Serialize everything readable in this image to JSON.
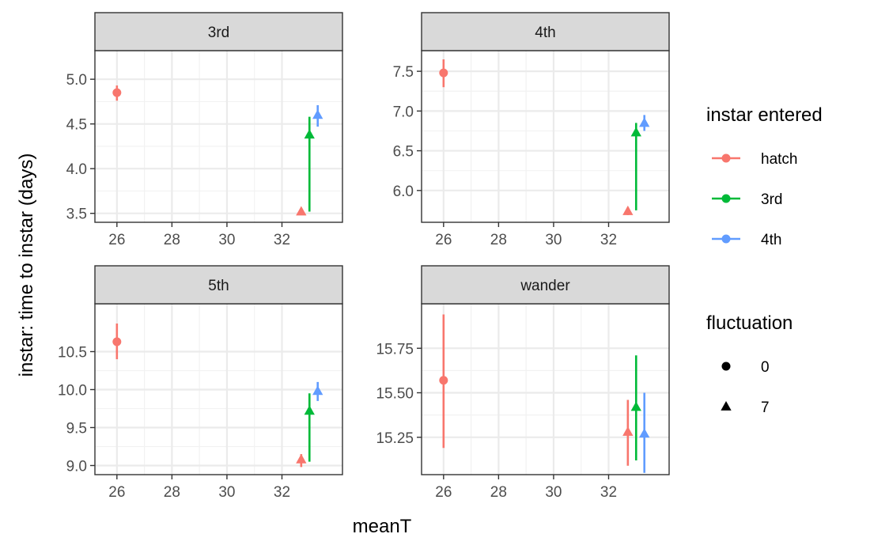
{
  "chart_data": {
    "type": "scatter",
    "xlabel": "meanT",
    "ylabel": "instar: time to instar (days)",
    "x_ticks": [
      26,
      28,
      30,
      32
    ],
    "xlim": [
      25.2,
      34.2
    ],
    "legend": {
      "placement": "right",
      "color_title": "instar entered",
      "color_entries": [
        {
          "label": "hatch",
          "color": "#F8766D"
        },
        {
          "label": "3rd",
          "color": "#00BA38"
        },
        {
          "label": "4th",
          "color": "#619CFF"
        }
      ],
      "shape_title": "fluctuation",
      "shape_entries": [
        {
          "label": "0",
          "shape": "circle"
        },
        {
          "label": "7",
          "shape": "triangle"
        }
      ]
    },
    "panels": [
      {
        "strip": "3rd",
        "ylim": [
          3.4,
          5.32
        ],
        "y_ticks": [
          3.5,
          4.0,
          4.5,
          5.0
        ],
        "y_tick_labels": [
          "3.5",
          "4.0",
          "4.5",
          "5.0"
        ],
        "points": [
          {
            "series": "hatch",
            "fluctuation": "0",
            "x": 26.0,
            "y": 4.85,
            "lo": 4.76,
            "hi": 4.93
          },
          {
            "series": "hatch",
            "fluctuation": "7",
            "x": 32.7,
            "y": 3.52,
            "lo": 3.48,
            "hi": 3.56
          },
          {
            "series": "3rd",
            "fluctuation": "7",
            "x": 33.0,
            "y": 4.38,
            "lo": 3.52,
            "hi": 4.58
          },
          {
            "series": "4th",
            "fluctuation": "7",
            "x": 33.3,
            "y": 4.6,
            "lo": 4.47,
            "hi": 4.71
          }
        ]
      },
      {
        "strip": "4th",
        "ylim": [
          5.6,
          7.76
        ],
        "y_ticks": [
          6.0,
          6.5,
          7.0,
          7.5
        ],
        "y_tick_labels": [
          "6.0",
          "6.5",
          "7.0",
          "7.5"
        ],
        "points": [
          {
            "series": "hatch",
            "fluctuation": "0",
            "x": 26.0,
            "y": 7.48,
            "lo": 7.3,
            "hi": 7.65
          },
          {
            "series": "hatch",
            "fluctuation": "7",
            "x": 32.7,
            "y": 5.74,
            "lo": 5.69,
            "hi": 5.79
          },
          {
            "series": "3rd",
            "fluctuation": "7",
            "x": 33.0,
            "y": 6.73,
            "lo": 5.75,
            "hi": 6.85
          },
          {
            "series": "4th",
            "fluctuation": "7",
            "x": 33.3,
            "y": 6.85,
            "lo": 6.75,
            "hi": 6.95
          }
        ]
      },
      {
        "strip": "5th",
        "ylim": [
          8.88,
          11.13
        ],
        "y_ticks": [
          9.0,
          9.5,
          10.0,
          10.5
        ],
        "y_tick_labels": [
          "9.0",
          "9.5",
          "10.0",
          "10.5"
        ],
        "points": [
          {
            "series": "hatch",
            "fluctuation": "0",
            "x": 26.0,
            "y": 10.63,
            "lo": 10.4,
            "hi": 10.87
          },
          {
            "series": "hatch",
            "fluctuation": "7",
            "x": 32.7,
            "y": 9.08,
            "lo": 8.98,
            "hi": 9.15
          },
          {
            "series": "3rd",
            "fluctuation": "7",
            "x": 33.0,
            "y": 9.72,
            "lo": 9.05,
            "hi": 9.95
          },
          {
            "series": "4th",
            "fluctuation": "7",
            "x": 33.3,
            "y": 9.98,
            "lo": 9.85,
            "hi": 10.1
          }
        ]
      },
      {
        "strip": "wander",
        "ylim": [
          15.04,
          16.0
        ],
        "y_ticks": [
          15.25,
          15.5,
          15.75
        ],
        "y_tick_labels": [
          "15.25",
          "15.50",
          "15.75"
        ],
        "points": [
          {
            "series": "hatch",
            "fluctuation": "0",
            "x": 26.0,
            "y": 15.57,
            "lo": 15.19,
            "hi": 15.94
          },
          {
            "series": "hatch",
            "fluctuation": "7",
            "x": 32.7,
            "y": 15.28,
            "lo": 15.09,
            "hi": 15.46
          },
          {
            "series": "3rd",
            "fluctuation": "7",
            "x": 33.0,
            "y": 15.42,
            "lo": 15.12,
            "hi": 15.71
          },
          {
            "series": "4th",
            "fluctuation": "7",
            "x": 33.3,
            "y": 15.27,
            "lo": 15.05,
            "hi": 15.5
          }
        ]
      }
    ]
  }
}
